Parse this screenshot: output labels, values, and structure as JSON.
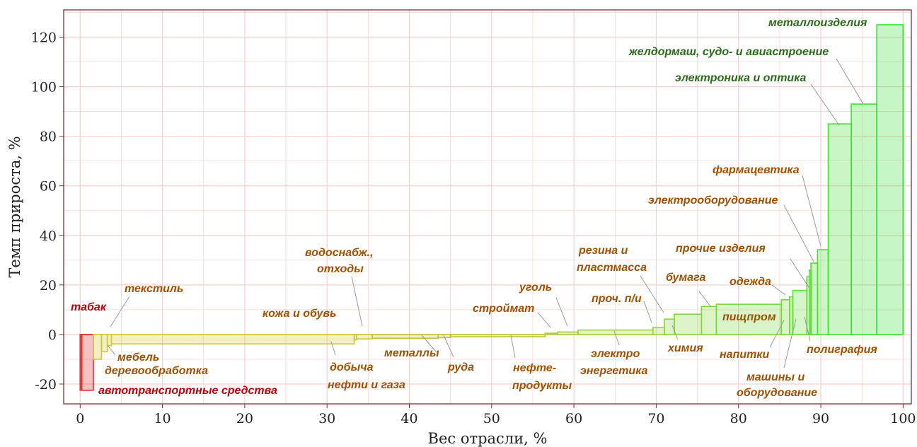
{
  "chart_data": {
    "type": "bar",
    "xlabel": "Вес отрасли, %",
    "ylabel": "Темп прироста, %",
    "xlim": [
      -2,
      101
    ],
    "ylim": [
      -28,
      131
    ],
    "xticks": [
      "0",
      "10",
      "20",
      "30",
      "40",
      "50",
      "60",
      "70",
      "80",
      "90",
      "100"
    ],
    "yticks": [
      "-20",
      "0",
      "20",
      "40",
      "60",
      "80",
      "100",
      "120"
    ],
    "grid": true,
    "colors": {
      "negative_strong": "#e02020",
      "negative": "#d4c630",
      "neutral": "#b4c23a",
      "positive": "#34e02e",
      "negative_label": "#b8000d",
      "neutral_label": "#a05000",
      "positive_label": "#2b6a1a",
      "grid": "#f5d0d0",
      "frame": "#7a3030"
    },
    "bars": [
      {
        "label": "табак",
        "x0": 0.0,
        "x1": 0.2,
        "value": -22.5,
        "color": "#e02020"
      },
      {
        "label": "автотранспортные средства",
        "x0": 0.2,
        "x1": 1.6,
        "value": -22.5,
        "color": "#e02020"
      },
      {
        "label": "деревообработка",
        "x0": 1.6,
        "x1": 2.6,
        "value": -10.0,
        "color": "#d4c630"
      },
      {
        "label": "мебель",
        "x0": 2.6,
        "x1": 3.3,
        "value": -7.0,
        "color": "#d4c630"
      },
      {
        "label": "текстиль",
        "x0": 3.3,
        "x1": 3.8,
        "value": -4.5,
        "color": "#d4c630"
      },
      {
        "label": "добыча нефти и газа",
        "x0": 3.8,
        "x1": 33.3,
        "value": -3.8,
        "color": "#d4c630"
      },
      {
        "label": "кожа и обувь",
        "x0": 33.3,
        "x1": 33.6,
        "value": -2.2,
        "color": "#ccc436"
      },
      {
        "label": "водоснабж., отходы",
        "x0": 33.6,
        "x1": 35.5,
        "value": -1.8,
        "color": "#ccc436"
      },
      {
        "label": "металлы",
        "x0": 35.5,
        "x1": 43.5,
        "value": -1.5,
        "color": "#c4c238"
      },
      {
        "label": "руда",
        "x0": 43.5,
        "x1": 45.0,
        "value": -1.3,
        "color": "#c4c238"
      },
      {
        "label": "нефте-продукты",
        "x0": 45.0,
        "x1": 56.5,
        "value": -0.9,
        "color": "#bdc13a"
      },
      {
        "label": "строймат",
        "x0": 56.5,
        "x1": 58.0,
        "value": 0.5,
        "color": "#acc93a"
      },
      {
        "label": "уголь",
        "x0": 58.0,
        "x1": 60.5,
        "value": 1.0,
        "color": "#a6cc3a"
      },
      {
        "label": "электро энергетика",
        "x0": 60.5,
        "x1": 69.6,
        "value": 1.8,
        "color": "#9ed03a"
      },
      {
        "label": "проч. п/и",
        "x0": 69.6,
        "x1": 71.0,
        "value": 2.8,
        "color": "#96d43a"
      },
      {
        "label": "резина и пластмасса",
        "x0": 71.0,
        "x1": 72.2,
        "value": 6.2,
        "color": "#8ed43a"
      },
      {
        "label": "химия",
        "x0": 72.2,
        "x1": 75.5,
        "value": 8.2,
        "color": "#86d43a"
      },
      {
        "label": "бумага",
        "x0": 75.5,
        "x1": 77.3,
        "value": 11.3,
        "color": "#80d63a"
      },
      {
        "label": "пищпром",
        "x0": 77.3,
        "x1": 85.2,
        "value": 12.2,
        "color": "#78d83a"
      },
      {
        "label": "одежда",
        "x0": 85.2,
        "x1": 86.2,
        "value": 14.0,
        "color": "#70da38"
      },
      {
        "label": "напитки",
        "x0": 86.2,
        "x1": 86.6,
        "value": 15.2,
        "color": "#6adc36"
      },
      {
        "label": "машины и оборудование",
        "x0": 86.6,
        "x1": 88.3,
        "value": 17.8,
        "color": "#62dc36"
      },
      {
        "label": "прочие изделия",
        "x0": 88.3,
        "x1": 88.6,
        "value": 23.3,
        "color": "#5cdc34"
      },
      {
        "label": "полиграфия",
        "x0": 88.6,
        "x1": 88.8,
        "value": 26.0,
        "color": "#56de34"
      },
      {
        "label": "электрооборудование",
        "x0": 88.8,
        "x1": 89.6,
        "value": 28.8,
        "color": "#50de32"
      },
      {
        "label": "фармацевтика",
        "x0": 89.6,
        "x1": 90.9,
        "value": 34.2,
        "color": "#4ae032"
      },
      {
        "label": "электроника и оптика",
        "x0": 90.9,
        "x1": 93.7,
        "value": 85.0,
        "color": "#42e030"
      },
      {
        "label": "желдормаш, судо- и авиастроение",
        "x0": 93.7,
        "x1": 96.8,
        "value": 93.0,
        "color": "#3ce030"
      },
      {
        "label": "металлоизделия",
        "x0": 96.8,
        "x1": 100.0,
        "value": 125.0,
        "color": "#34e02e"
      }
    ],
    "annotations": [
      {
        "text": "табак",
        "bar": 0,
        "color": "#b8000d"
      },
      {
        "text": "автотранспортные средства",
        "bar": 1,
        "color": "#b8000d"
      },
      {
        "text": "деревообработка",
        "bar": 2,
        "color": "#a05000"
      },
      {
        "text": "мебель",
        "bar": 3,
        "color": "#a05000"
      },
      {
        "text": "текстиль",
        "bar": 4,
        "color": "#a05000"
      },
      {
        "text": "добыча",
        "bar": 5,
        "color": "#a05000"
      },
      {
        "text": "нефти и газа",
        "bar": 5,
        "color": "#a05000"
      },
      {
        "text": "кожа и обувь",
        "bar": 6,
        "color": "#a05000"
      },
      {
        "text": "водоснабж.,",
        "bar": 7,
        "color": "#a05000"
      },
      {
        "text": "отходы",
        "bar": 7,
        "color": "#a05000"
      },
      {
        "text": "металлы",
        "bar": 8,
        "color": "#a05000"
      },
      {
        "text": "руда",
        "bar": 9,
        "color": "#a05000"
      },
      {
        "text": "нефте-",
        "bar": 10,
        "color": "#a05000"
      },
      {
        "text": "продукты",
        "bar": 10,
        "color": "#a05000"
      },
      {
        "text": "строймат",
        "bar": 11,
        "color": "#a05000"
      },
      {
        "text": "уголь",
        "bar": 12,
        "color": "#a05000"
      },
      {
        "text": "электро",
        "bar": 13,
        "color": "#a05000"
      },
      {
        "text": "энергетика",
        "bar": 13,
        "color": "#a05000"
      },
      {
        "text": "проч. п/и",
        "bar": 14,
        "color": "#a05000"
      },
      {
        "text": "резина и",
        "bar": 15,
        "color": "#a05000"
      },
      {
        "text": "пластмасса",
        "bar": 15,
        "color": "#a05000"
      },
      {
        "text": "химия",
        "bar": 16,
        "color": "#a05000"
      },
      {
        "text": "бумага",
        "bar": 17,
        "color": "#a05000"
      },
      {
        "text": "пищпром",
        "bar": 18,
        "color": "#a05000"
      },
      {
        "text": "одежда",
        "bar": 19,
        "color": "#a05000"
      },
      {
        "text": "напитки",
        "bar": 20,
        "color": "#a05000"
      },
      {
        "text": "машины и",
        "bar": 21,
        "color": "#a05000"
      },
      {
        "text": "оборудование",
        "bar": 21,
        "color": "#a05000"
      },
      {
        "text": "прочие изделия",
        "bar": 22,
        "color": "#a05000"
      },
      {
        "text": "полиграфия",
        "bar": 23,
        "color": "#a05000"
      },
      {
        "text": "электрооборудование",
        "bar": 24,
        "color": "#a05000"
      },
      {
        "text": "фармацевтика",
        "bar": 25,
        "color": "#a05000"
      },
      {
        "text": "электроника и оптика",
        "bar": 26,
        "color": "#2b6a1a"
      },
      {
        "text": "желдормаш, судо- и авиастроение",
        "bar": 27,
        "color": "#2b6a1a"
      },
      {
        "text": "металлоизделия",
        "bar": 28,
        "color": "#2b6a1a"
      }
    ]
  }
}
